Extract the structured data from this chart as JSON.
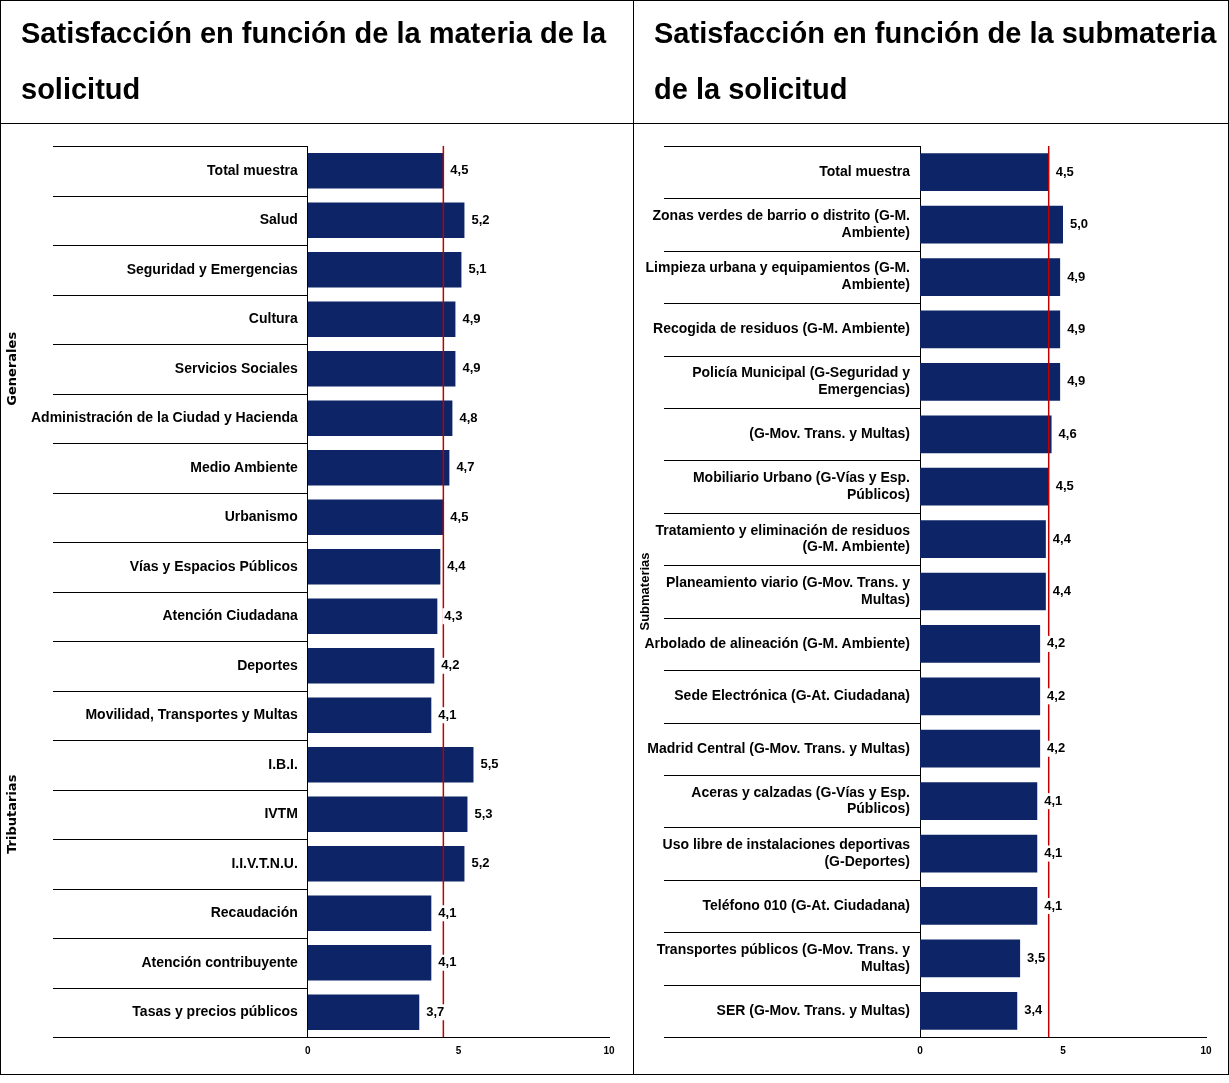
{
  "chart_data": [
    {
      "type": "bar",
      "orientation": "horizontal",
      "title": "Satisfacción en función de la materia de la solicitud",
      "categories": [
        "Total muestra",
        "Salud",
        "Seguridad y Emergencias",
        "Cultura",
        "Servicios Sociales",
        "Administración de la Ciudad y Hacienda",
        "Medio Ambiente",
        "Urbanismo",
        "Vías y Espacios Públicos",
        "Atención Ciudadana",
        "Deportes",
        "Movilidad, Transportes y Multas",
        "I.B.I.",
        "IVTM",
        "I.I.V.T.N.U.",
        "Recaudación",
        "Atención contribuyente",
        "Tasas y precios públicos"
      ],
      "values": [
        4.5,
        5.2,
        5.1,
        4.9,
        4.9,
        4.8,
        4.7,
        4.5,
        4.4,
        4.3,
        4.2,
        4.1,
        5.5,
        5.3,
        5.2,
        4.1,
        4.1,
        3.7
      ],
      "value_labels": [
        "4,5",
        "5,2",
        "5,1",
        "4,9",
        "4,9",
        "4,8",
        "4,7",
        "4,5",
        "4,4",
        "4,3",
        "4,2",
        "4,1",
        "5,5",
        "5,3",
        "5,2",
        "4,1",
        "4,1",
        "3,7"
      ],
      "color": "#0d2466",
      "xlim": [
        0,
        10
      ],
      "xticks": [
        0,
        5,
        10
      ],
      "grid": false,
      "legend": false,
      "ref_lines": [
        {
          "axis": "x",
          "value": 4.5,
          "color": "#c00000"
        }
      ],
      "annotations": [
        "Generales",
        "Tributarias"
      ]
    },
    {
      "type": "bar",
      "orientation": "horizontal",
      "title": "Satisfacción en función de la submateria de la solicitud",
      "ylabel": "Submaterias",
      "categories": [
        "Total muestra",
        "Zonas verdes de barrio o distrito (G-M. Ambiente)",
        "Limpieza urbana y equipamientos (G-M. Ambiente)",
        "Recogida de residuos (G-M. Ambiente)",
        "Policía Municipal (G-Seguridad y Emergencias)",
        "(G-Mov. Trans. y Multas)",
        "Mobiliario Urbano (G-Vías y Esp. Públicos)",
        "Tratamiento y eliminación de residuos (G-M. Ambiente)",
        "Planeamiento viario (G-Mov. Trans. y Multas)",
        "Arbolado de alineación (G-M. Ambiente)",
        "Sede Electrónica (G-At. Ciudadana)",
        "Madrid Central (G-Mov. Trans. y Multas)",
        "Aceras y calzadas (G-Vías y Esp. Públicos)",
        "Uso libre de instalaciones deportivas (G-Deportes)",
        "Teléfono 010 (G-At. Ciudadana)",
        "Transportes públicos (G-Mov. Trans. y Multas)",
        "SER (G-Mov. Trans. y Multas)"
      ],
      "values": [
        4.5,
        5.0,
        4.9,
        4.9,
        4.9,
        4.6,
        4.5,
        4.4,
        4.4,
        4.2,
        4.2,
        4.2,
        4.1,
        4.1,
        4.1,
        3.5,
        3.4
      ],
      "value_labels": [
        "4,5",
        "5,0",
        "4,9",
        "4,9",
        "4,9",
        "4,6",
        "4,5",
        "4,4",
        "4,4",
        "4,2",
        "4,2",
        "4,2",
        "4,1",
        "4,1",
        "4,1",
        "3,5",
        "3,4"
      ],
      "color": "#0d2466",
      "xlim": [
        0,
        10
      ],
      "xticks": [
        0,
        5,
        10
      ],
      "grid": false,
      "legend": false,
      "ref_lines": [
        {
          "axis": "x",
          "value": 4.5,
          "color": "#c00000"
        }
      ]
    }
  ]
}
